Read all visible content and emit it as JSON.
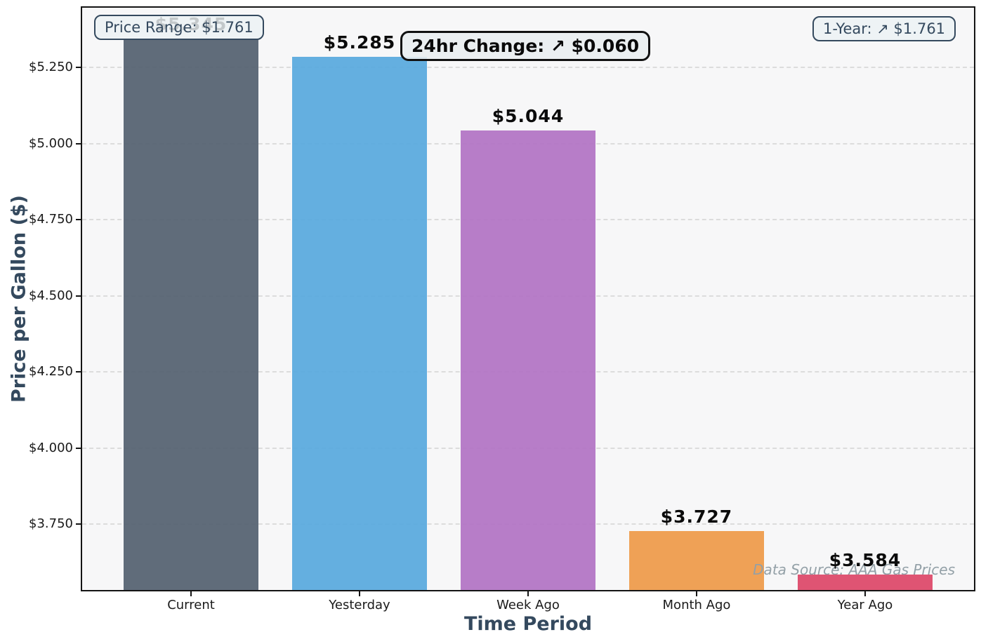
{
  "figure": {
    "background": "#ffffff",
    "plot_background": "#f7f7f8",
    "accent_text_color": "#34495e"
  },
  "annotations": {
    "price_range": "Price Range: $1.761",
    "change_24hr": "24hr Change: ↗ $0.060",
    "one_year": "1-Year: ↗ $1.761",
    "data_source": "Data Source: AAA Gas Prices"
  },
  "chart_data": {
    "type": "bar",
    "categories": [
      "Current",
      "Yesterday",
      "Week Ago",
      "Month Ago",
      "Year Ago"
    ],
    "values": [
      5.345,
      5.285,
      5.044,
      3.727,
      3.584
    ],
    "bar_labels": [
      "$5.345",
      "$5.285",
      "$5.044",
      "$3.727",
      "$3.584"
    ],
    "bar_colors": [
      "#546170",
      "#58a9de",
      "#b273c4",
      "#ee9a49",
      "#dd4768"
    ],
    "title": "",
    "xlabel": "Time Period",
    "ylabel": "Price per Gallon ($)",
    "ylim": [
      3.534,
      5.446
    ],
    "yticks": [
      3.75,
      4.0,
      4.25,
      4.5,
      4.75,
      5.0,
      5.25
    ],
    "ytick_labels": [
      "$3.750",
      "$4.000",
      "$4.250",
      "$4.500",
      "$4.750",
      "$5.000",
      "$5.250"
    ],
    "grid": "horizontal-dashed",
    "legend": "none",
    "bar_width_fraction": 0.8,
    "annotations": [
      "Price Range: $1.761",
      "24hr Change: ↗ $0.060",
      "1-Year: ↗ $1.761",
      "Data Source: AAA Gas Prices"
    ]
  }
}
